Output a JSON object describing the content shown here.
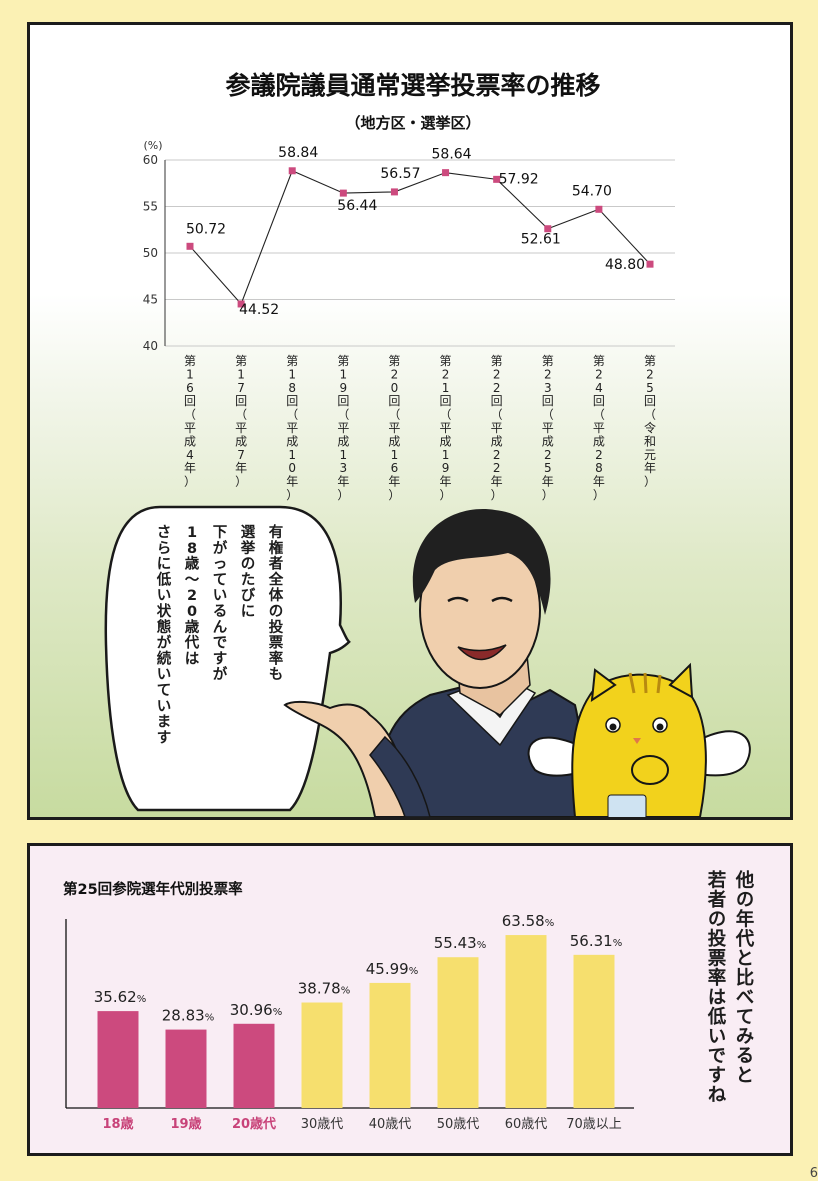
{
  "colors": {
    "page_bg": "#fbf1b4",
    "line_marker": "#cc4a7e",
    "bar_young": "#cc4a7e",
    "bar_older": "#f6df6e",
    "label_young": "#c84379",
    "label_older": "#333333"
  },
  "speech_bubble": {
    "lines": [
      "有権者全体の投票率も",
      "選挙のたびに",
      "下がっているんですが",
      "18歳～20歳代は",
      "さらに低い状態が続いています"
    ]
  },
  "side_comment": {
    "lines": [
      "他の年代と比べてみると",
      "若者の投票率は低いですね"
    ]
  },
  "page_number": "6",
  "chart_data": [
    {
      "type": "line",
      "title": "参議院議員通常選挙投票率の推移",
      "subtitle": "（地方区・選挙区）",
      "unit_label": "(%)",
      "x": [
        "第16回（平成4年）",
        "第17回（平成7年）",
        "第18回（平成10年）",
        "第19回（平成13年）",
        "第20回（平成16年）",
        "第21回（平成19年）",
        "第22回（平成22年）",
        "第23回（平成25年）",
        "第24回（平成28年）",
        "第25回（令和元年）"
      ],
      "series": [
        {
          "values": [
            50.72,
            44.52,
            58.84,
            56.44,
            56.57,
            58.64,
            57.92,
            52.61,
            54.7,
            48.8
          ]
        }
      ],
      "data_labels": [
        "50.72",
        "44.52",
        "58.84",
        "56.44",
        "56.57",
        "58.64",
        "57.92",
        "52.61",
        "54.70",
        "48.80"
      ],
      "ylim": [
        40,
        60
      ],
      "yticks": [
        40,
        45,
        50,
        55,
        60
      ],
      "grid": "horizontal"
    },
    {
      "type": "bar",
      "title": "第25回参院選年代別投票率",
      "categories": [
        "18歳",
        "19歳",
        "20歳代",
        "30歳代",
        "40歳代",
        "50歳代",
        "60歳代",
        "70歳以上"
      ],
      "values": [
        35.62,
        28.83,
        30.96,
        38.78,
        45.99,
        55.43,
        63.58,
        56.31
      ],
      "value_labels": [
        "35.62",
        "28.83",
        "30.96",
        "38.78",
        "45.99",
        "55.43",
        "63.58",
        "56.31"
      ],
      "unit": "%",
      "highlight_count": 3
    }
  ]
}
